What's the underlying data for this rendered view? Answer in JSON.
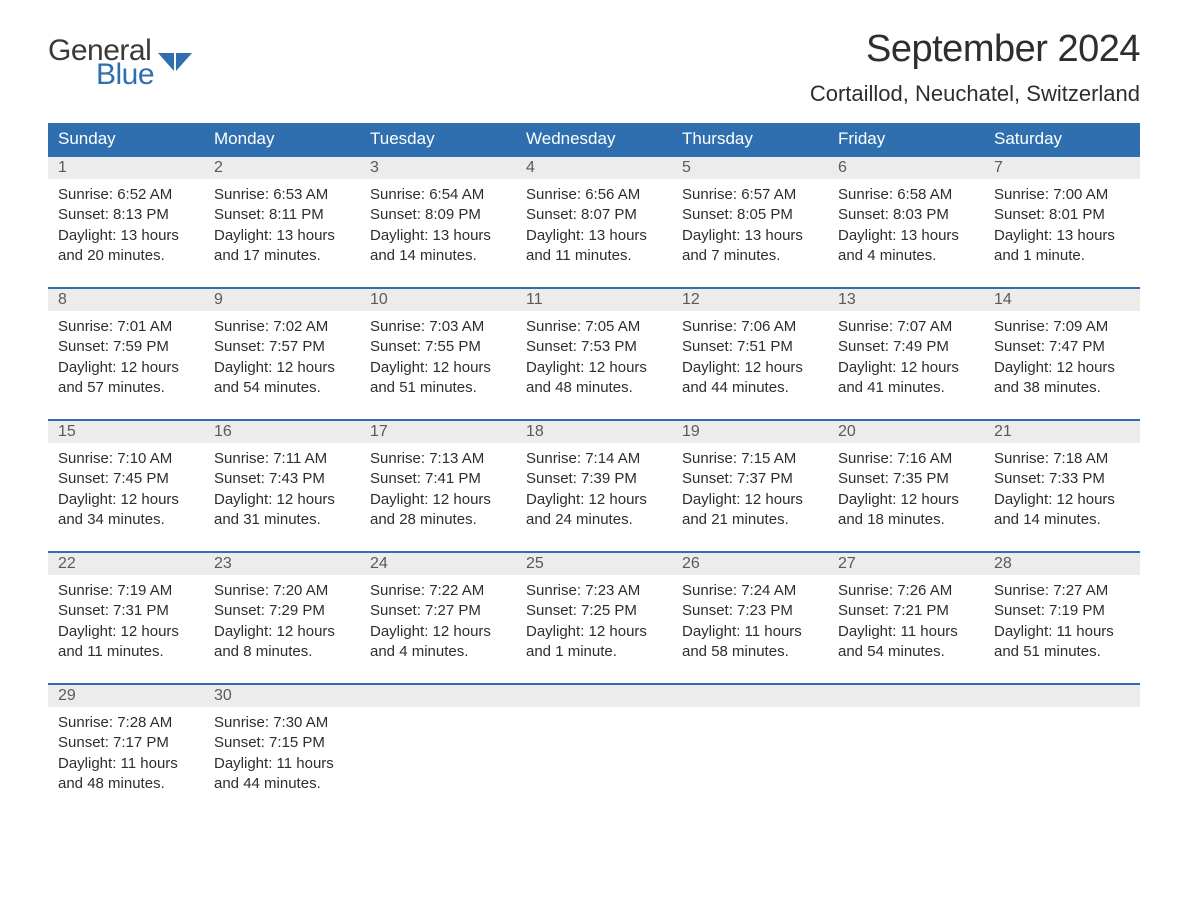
{
  "logo": {
    "general": "General",
    "blue": "Blue",
    "mark_color": "#2f6fb0"
  },
  "header": {
    "month_title": "September 2024",
    "location": "Cortaillod, Neuchatel, Switzerland"
  },
  "colors": {
    "header_bg": "#2f6fb0",
    "header_text": "#ffffff",
    "row_divider": "#2f6fb0",
    "daynum_bg": "#ececec",
    "daynum_text": "#5a5a5a",
    "body_text": "#2e2e2e",
    "page_bg": "#ffffff"
  },
  "day_names": [
    "Sunday",
    "Monday",
    "Tuesday",
    "Wednesday",
    "Thursday",
    "Friday",
    "Saturday"
  ],
  "weeks": [
    [
      {
        "num": "1",
        "sunrise": "Sunrise: 6:52 AM",
        "sunset": "Sunset: 8:13 PM",
        "daylight1": "Daylight: 13 hours",
        "daylight2": "and 20 minutes."
      },
      {
        "num": "2",
        "sunrise": "Sunrise: 6:53 AM",
        "sunset": "Sunset: 8:11 PM",
        "daylight1": "Daylight: 13 hours",
        "daylight2": "and 17 minutes."
      },
      {
        "num": "3",
        "sunrise": "Sunrise: 6:54 AM",
        "sunset": "Sunset: 8:09 PM",
        "daylight1": "Daylight: 13 hours",
        "daylight2": "and 14 minutes."
      },
      {
        "num": "4",
        "sunrise": "Sunrise: 6:56 AM",
        "sunset": "Sunset: 8:07 PM",
        "daylight1": "Daylight: 13 hours",
        "daylight2": "and 11 minutes."
      },
      {
        "num": "5",
        "sunrise": "Sunrise: 6:57 AM",
        "sunset": "Sunset: 8:05 PM",
        "daylight1": "Daylight: 13 hours",
        "daylight2": "and 7 minutes."
      },
      {
        "num": "6",
        "sunrise": "Sunrise: 6:58 AM",
        "sunset": "Sunset: 8:03 PM",
        "daylight1": "Daylight: 13 hours",
        "daylight2": "and 4 minutes."
      },
      {
        "num": "7",
        "sunrise": "Sunrise: 7:00 AM",
        "sunset": "Sunset: 8:01 PM",
        "daylight1": "Daylight: 13 hours",
        "daylight2": "and 1 minute."
      }
    ],
    [
      {
        "num": "8",
        "sunrise": "Sunrise: 7:01 AM",
        "sunset": "Sunset: 7:59 PM",
        "daylight1": "Daylight: 12 hours",
        "daylight2": "and 57 minutes."
      },
      {
        "num": "9",
        "sunrise": "Sunrise: 7:02 AM",
        "sunset": "Sunset: 7:57 PM",
        "daylight1": "Daylight: 12 hours",
        "daylight2": "and 54 minutes."
      },
      {
        "num": "10",
        "sunrise": "Sunrise: 7:03 AM",
        "sunset": "Sunset: 7:55 PM",
        "daylight1": "Daylight: 12 hours",
        "daylight2": "and 51 minutes."
      },
      {
        "num": "11",
        "sunrise": "Sunrise: 7:05 AM",
        "sunset": "Sunset: 7:53 PM",
        "daylight1": "Daylight: 12 hours",
        "daylight2": "and 48 minutes."
      },
      {
        "num": "12",
        "sunrise": "Sunrise: 7:06 AM",
        "sunset": "Sunset: 7:51 PM",
        "daylight1": "Daylight: 12 hours",
        "daylight2": "and 44 minutes."
      },
      {
        "num": "13",
        "sunrise": "Sunrise: 7:07 AM",
        "sunset": "Sunset: 7:49 PM",
        "daylight1": "Daylight: 12 hours",
        "daylight2": "and 41 minutes."
      },
      {
        "num": "14",
        "sunrise": "Sunrise: 7:09 AM",
        "sunset": "Sunset: 7:47 PM",
        "daylight1": "Daylight: 12 hours",
        "daylight2": "and 38 minutes."
      }
    ],
    [
      {
        "num": "15",
        "sunrise": "Sunrise: 7:10 AM",
        "sunset": "Sunset: 7:45 PM",
        "daylight1": "Daylight: 12 hours",
        "daylight2": "and 34 minutes."
      },
      {
        "num": "16",
        "sunrise": "Sunrise: 7:11 AM",
        "sunset": "Sunset: 7:43 PM",
        "daylight1": "Daylight: 12 hours",
        "daylight2": "and 31 minutes."
      },
      {
        "num": "17",
        "sunrise": "Sunrise: 7:13 AM",
        "sunset": "Sunset: 7:41 PM",
        "daylight1": "Daylight: 12 hours",
        "daylight2": "and 28 minutes."
      },
      {
        "num": "18",
        "sunrise": "Sunrise: 7:14 AM",
        "sunset": "Sunset: 7:39 PM",
        "daylight1": "Daylight: 12 hours",
        "daylight2": "and 24 minutes."
      },
      {
        "num": "19",
        "sunrise": "Sunrise: 7:15 AM",
        "sunset": "Sunset: 7:37 PM",
        "daylight1": "Daylight: 12 hours",
        "daylight2": "and 21 minutes."
      },
      {
        "num": "20",
        "sunrise": "Sunrise: 7:16 AM",
        "sunset": "Sunset: 7:35 PM",
        "daylight1": "Daylight: 12 hours",
        "daylight2": "and 18 minutes."
      },
      {
        "num": "21",
        "sunrise": "Sunrise: 7:18 AM",
        "sunset": "Sunset: 7:33 PM",
        "daylight1": "Daylight: 12 hours",
        "daylight2": "and 14 minutes."
      }
    ],
    [
      {
        "num": "22",
        "sunrise": "Sunrise: 7:19 AM",
        "sunset": "Sunset: 7:31 PM",
        "daylight1": "Daylight: 12 hours",
        "daylight2": "and 11 minutes."
      },
      {
        "num": "23",
        "sunrise": "Sunrise: 7:20 AM",
        "sunset": "Sunset: 7:29 PM",
        "daylight1": "Daylight: 12 hours",
        "daylight2": "and 8 minutes."
      },
      {
        "num": "24",
        "sunrise": "Sunrise: 7:22 AM",
        "sunset": "Sunset: 7:27 PM",
        "daylight1": "Daylight: 12 hours",
        "daylight2": "and 4 minutes."
      },
      {
        "num": "25",
        "sunrise": "Sunrise: 7:23 AM",
        "sunset": "Sunset: 7:25 PM",
        "daylight1": "Daylight: 12 hours",
        "daylight2": "and 1 minute."
      },
      {
        "num": "26",
        "sunrise": "Sunrise: 7:24 AM",
        "sunset": "Sunset: 7:23 PM",
        "daylight1": "Daylight: 11 hours",
        "daylight2": "and 58 minutes."
      },
      {
        "num": "27",
        "sunrise": "Sunrise: 7:26 AM",
        "sunset": "Sunset: 7:21 PM",
        "daylight1": "Daylight: 11 hours",
        "daylight2": "and 54 minutes."
      },
      {
        "num": "28",
        "sunrise": "Sunrise: 7:27 AM",
        "sunset": "Sunset: 7:19 PM",
        "daylight1": "Daylight: 11 hours",
        "daylight2": "and 51 minutes."
      }
    ],
    [
      {
        "num": "29",
        "sunrise": "Sunrise: 7:28 AM",
        "sunset": "Sunset: 7:17 PM",
        "daylight1": "Daylight: 11 hours",
        "daylight2": "and 48 minutes."
      },
      {
        "num": "30",
        "sunrise": "Sunrise: 7:30 AM",
        "sunset": "Sunset: 7:15 PM",
        "daylight1": "Daylight: 11 hours",
        "daylight2": "and 44 minutes."
      },
      {
        "empty": true
      },
      {
        "empty": true
      },
      {
        "empty": true
      },
      {
        "empty": true
      },
      {
        "empty": true
      }
    ]
  ]
}
